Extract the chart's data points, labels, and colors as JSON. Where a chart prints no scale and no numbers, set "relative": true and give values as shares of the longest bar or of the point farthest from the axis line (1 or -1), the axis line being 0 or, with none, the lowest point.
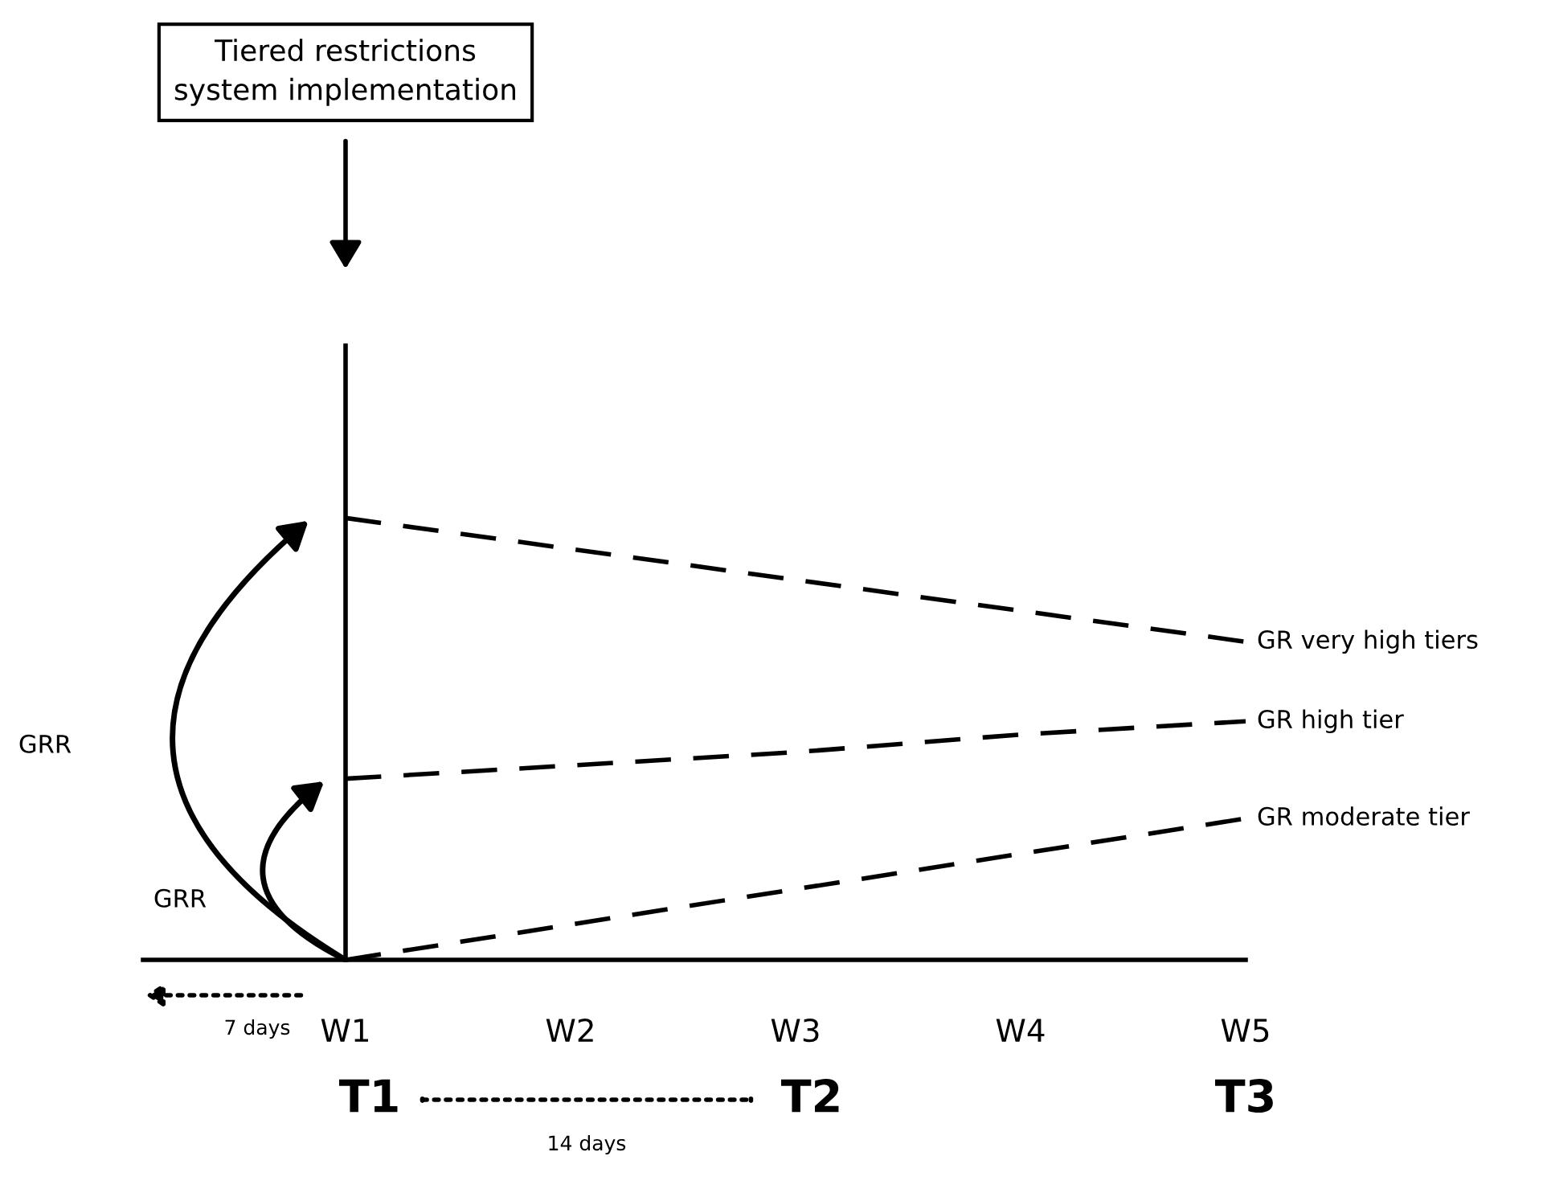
{
  "chart_data": {
    "type": "line",
    "relative": true,
    "categories": [
      "W1",
      "W2",
      "W3",
      "W4",
      "W5"
    ],
    "series": [
      {
        "name": "GR very high tiers",
        "color": "#000000",
        "values": [
          1,
          0.93,
          0.86,
          0.79,
          0.72
        ]
      },
      {
        "name": "GR high tier",
        "color": "#000000",
        "values": [
          0.41,
          0.44,
          0.47,
          0.51,
          0.54
        ]
      },
      {
        "name": "GR moderate tier",
        "color": "#000000",
        "values": [
          0,
          0.08,
          0.16,
          0.24,
          0.32
        ]
      }
    ],
    "line_style": "dashed",
    "marker": "none",
    "grid": false,
    "legend": false,
    "annotations": [
      "Tiered restrictions system implementation",
      "GRR",
      "GRR",
      "7 days",
      "14 days",
      "T1",
      "T2",
      "T3"
    ]
  }
}
